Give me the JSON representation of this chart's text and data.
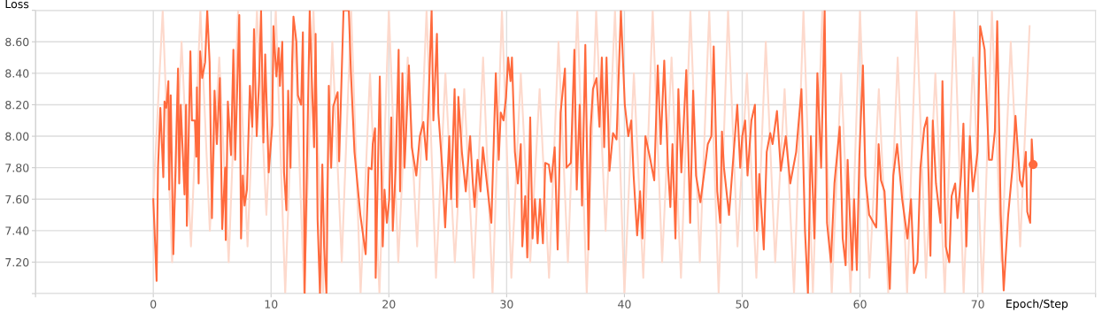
{
  "chart_data": {
    "type": "line",
    "xlabel": "Epoch/Step",
    "ylabel": "Loss",
    "xlim": [
      -10,
      80
    ],
    "ylim": [
      7.0,
      8.8
    ],
    "xticks": [
      {
        "value": -10,
        "label": null
      },
      0,
      10,
      20,
      30,
      40,
      50,
      60,
      70,
      {
        "value": 80,
        "label": null
      }
    ],
    "yticks": [
      {
        "value": 7.0,
        "label": null
      },
      {
        "value": 7.2,
        "label": "7.20"
      },
      {
        "value": 7.4,
        "label": "7.40"
      },
      {
        "value": 7.6,
        "label": "7.60"
      },
      {
        "value": 7.8,
        "label": "7.80"
      },
      {
        "value": 8.0,
        "label": "8.00"
      },
      {
        "value": 8.2,
        "label": "8.20"
      },
      {
        "value": 8.4,
        "label": "8.40"
      },
      {
        "value": 8.6,
        "label": "8.60"
      },
      {
        "value": 8.8,
        "label": null
      }
    ],
    "grid": true,
    "legend": false,
    "line_style": "solid",
    "series": [
      {
        "color": "#fdd9cc",
        "x": [
          0,
          0.8,
          1.6,
          2.4,
          3.2,
          4.0,
          4.8,
          5.6,
          6.4,
          7.2,
          8.0,
          8.8,
          9.6,
          10.4,
          11.2,
          12.0,
          12.8,
          13.6,
          14.4,
          15.2,
          16.0,
          16.8,
          17.6,
          18.4,
          19.2,
          20.0,
          20.8,
          21.6,
          22.4,
          23.2,
          24.0,
          24.8,
          25.6,
          26.4,
          27.2,
          28.0,
          28.8,
          29.6,
          30.4,
          31.2,
          32.0,
          32.8,
          33.6,
          34.4,
          35.2,
          36.0,
          36.8,
          37.6,
          38.4,
          39.2,
          40.0,
          40.8,
          41.6,
          42.4,
          43.2,
          44.0,
          44.8,
          45.6,
          46.4,
          47.2,
          48.0,
          48.8,
          49.6,
          50.4,
          51.2,
          52.0,
          52.8,
          53.6,
          54.4,
          55.2,
          56.0,
          56.8,
          57.6,
          58.4,
          59.2,
          60.0,
          60.8,
          61.6,
          62.4,
          63.2,
          64.0,
          64.8,
          65.6,
          66.4,
          67.2,
          68.0,
          68.8,
          69.6,
          70.4,
          71.2,
          72.0,
          72.8,
          73.6,
          74.4
        ],
        "values": [
          7.6,
          8.8,
          7.2,
          8.6,
          7.3,
          8.8,
          7.4,
          8.5,
          7.2,
          8.8,
          7.3,
          8.8,
          7.5,
          8.8,
          7.0,
          8.7,
          7.0,
          8.8,
          7.0,
          8.6,
          7.2,
          8.8,
          7.0,
          8.4,
          7.0,
          8.8,
          7.2,
          8.5,
          7.3,
          8.8,
          7.1,
          8.4,
          7.2,
          8.3,
          7.1,
          8.5,
          7.0,
          8.8,
          7.1,
          8.4,
          7.2,
          8.3,
          7.1,
          8.6,
          7.2,
          8.8,
          7.0,
          8.8,
          7.4,
          8.8,
          7.0,
          8.4,
          7.1,
          8.8,
          7.2,
          8.5,
          7.1,
          8.8,
          7.2,
          8.8,
          7.0,
          8.8,
          7.3,
          8.4,
          7.1,
          8.6,
          7.2,
          8.3,
          7.0,
          8.8,
          7.0,
          8.8,
          7.0,
          8.4,
          7.0,
          8.8,
          7.1,
          8.3,
          7.0,
          8.5,
          7.0,
          8.8,
          7.1,
          8.4,
          7.0,
          8.8,
          7.0,
          8.5,
          7.0,
          8.8,
          7.2,
          8.6,
          7.3,
          8.7
        ]
      },
      {
        "color": "#ff6a3d",
        "x": [
          0,
          0.28,
          0.4,
          0.6,
          0.85,
          0.95,
          1.1,
          1.28,
          1.35,
          1.48,
          1.7,
          2.1,
          2.2,
          2.33,
          2.65,
          2.78,
          2.85,
          3.15,
          3.28,
          3.53,
          3.65,
          3.7,
          3.85,
          3.98,
          4.15,
          4.4,
          4.58,
          4.78,
          4.98,
          5.2,
          5.4,
          5.65,
          5.85,
          6.1,
          6.15,
          6.33,
          6.6,
          6.8,
          6.95,
          7.3,
          7.45,
          7.6,
          7.75,
          7.95,
          8.2,
          8.4,
          8.55,
          8.78,
          8.98,
          9.15,
          9.35,
          9.5,
          9.8,
          10.1,
          10.2,
          10.45,
          10.65,
          10.75,
          10.95,
          11.1,
          11.3,
          11.45,
          11.65,
          11.78,
          11.9,
          12.15,
          12.28,
          12.55,
          12.7,
          12.85,
          13.28,
          13.45,
          13.65,
          13.78,
          13.95,
          14.15,
          14.35,
          14.5,
          14.7,
          14.9,
          15.1,
          15.28,
          15.65,
          15.78,
          16.15,
          16.6,
          16.78,
          17.08,
          17.58,
          18.03,
          18.28,
          18.53,
          18.63,
          18.83,
          18.88,
          19.23,
          19.48,
          19.63,
          19.83,
          20.03,
          20.2,
          20.33,
          20.58,
          20.83,
          20.95,
          21.15,
          21.33,
          21.7,
          21.95,
          22.33,
          22.63,
          22.93,
          23.2,
          23.38,
          23.63,
          23.78,
          24.08,
          24.2,
          24.53,
          24.78,
          25.13,
          25.28,
          25.58,
          25.78,
          25.9,
          26.2,
          26.53,
          26.9,
          27.13,
          27.28,
          27.53,
          27.78,
          27.98,
          28.25,
          28.7,
          29.08,
          29.33,
          29.5,
          29.73,
          29.95,
          30.13,
          30.33,
          30.45,
          30.7,
          30.95,
          31.2,
          31.33,
          31.58,
          31.75,
          32.0,
          32.2,
          32.4,
          32.63,
          32.83,
          33.08,
          33.28,
          33.58,
          33.78,
          34.08,
          34.33,
          34.58,
          34.95,
          35.08,
          35.45,
          35.75,
          35.95,
          36.2,
          36.4,
          36.68,
          36.95,
          37.13,
          37.33,
          37.63,
          37.88,
          38.08,
          38.28,
          38.48,
          38.73,
          39.03,
          39.33,
          39.7,
          40.03,
          40.33,
          40.58,
          40.78,
          41.08,
          41.33,
          41.53,
          41.78,
          42.15,
          42.53,
          42.83,
          43.08,
          43.38,
          43.7,
          43.9,
          44.08,
          44.33,
          44.58,
          44.83,
          45.25,
          45.58,
          45.83,
          46.08,
          46.45,
          46.83,
          47.08,
          47.38,
          47.58,
          47.88,
          48.13,
          48.28,
          48.45,
          48.88,
          49.58,
          49.83,
          50,
          50.25,
          50.45,
          50.78,
          51.08,
          51.25,
          51.45,
          51.83,
          52.08,
          52.38,
          52.58,
          52.95,
          53.28,
          53.7,
          54.08,
          54.58,
          55.03,
          55.33,
          55.58,
          55.83,
          56.13,
          56.38,
          56.7,
          57.0,
          57.2,
          57.53,
          57.83,
          58.28,
          58.53,
          58.78,
          58.95,
          59.08,
          59.33,
          59.5,
          59.73,
          59.95,
          60.25,
          60.45,
          60.78,
          61.38,
          61.58,
          61.78,
          62.08,
          62.53,
          62.83,
          63.15,
          63.58,
          64.03,
          64.33,
          64.58,
          64.88,
          65.13,
          65.45,
          65.7,
          65.98,
          66.18,
          66.45,
          66.83,
          67.0,
          67.28,
          67.58,
          67.78,
          68.08,
          68.28,
          68.58,
          68.78,
          69.03,
          69.33,
          69.58,
          69.98,
          70.2,
          70.58,
          70.95,
          71.2,
          71.45,
          71.65,
          71.95,
          72.2,
          72.58,
          72.95,
          73.2,
          73.58,
          73.78,
          74.08,
          74.2,
          74.45,
          74.58,
          74.7
        ],
        "values": [
          7.6,
          7.08,
          7.8,
          8.18,
          7.74,
          8.22,
          8.18,
          8.35,
          7.66,
          8.26,
          7.25,
          8.43,
          7.7,
          8.2,
          7.63,
          8.2,
          7.43,
          8.54,
          8.1,
          8.1,
          7.87,
          8.31,
          7.7,
          8.54,
          8.37,
          8.47,
          8.8,
          8.47,
          7.48,
          8.29,
          7.95,
          8.37,
          7.41,
          7.8,
          7.34,
          8.22,
          7.88,
          8.55,
          7.85,
          8.77,
          7.35,
          7.75,
          7.56,
          7.66,
          8.32,
          8.06,
          8.68,
          8.0,
          8.35,
          8.8,
          7.96,
          8.52,
          7.77,
          8.07,
          8.7,
          8.38,
          8.56,
          8.32,
          8.6,
          7.77,
          7.53,
          8.29,
          7.8,
          8.45,
          8.76,
          8.6,
          8.26,
          8.2,
          8.66,
          7.0,
          8.8,
          8.38,
          7.93,
          8.65,
          7.47,
          7.0,
          7.82,
          7.3,
          7.0,
          8.32,
          7.8,
          8.19,
          8.28,
          7.84,
          8.8,
          8.8,
          8.4,
          7.9,
          7.5,
          7.25,
          7.8,
          7.79,
          7.95,
          8.05,
          7.1,
          8.38,
          7.3,
          7.66,
          7.45,
          7.6,
          8.12,
          7.4,
          7.8,
          8.55,
          7.65,
          8.4,
          7.8,
          8.45,
          7.93,
          7.75,
          8.0,
          8.09,
          7.85,
          8.25,
          8.8,
          8.1,
          8.65,
          8.15,
          7.8,
          7.42,
          8.0,
          7.6,
          8.3,
          7.55,
          8.25,
          7.9,
          7.65,
          8.0,
          7.7,
          7.55,
          7.85,
          7.65,
          7.93,
          7.75,
          7.45,
          8.4,
          7.85,
          8.15,
          8.1,
          8.25,
          8.5,
          8.35,
          8.5,
          7.9,
          7.7,
          7.95,
          7.3,
          7.62,
          7.23,
          8.12,
          7.35,
          7.6,
          7.32,
          7.6,
          7.32,
          7.83,
          7.82,
          7.71,
          7.93,
          7.28,
          8.15,
          8.43,
          7.8,
          7.83,
          8.55,
          7.66,
          8.2,
          7.56,
          8.58,
          7.28,
          8.05,
          8.3,
          8.37,
          8.06,
          8.5,
          7.93,
          8.5,
          7.78,
          8.02,
          7.98,
          8.8,
          8.2,
          8.0,
          8.1,
          7.75,
          7.37,
          7.65,
          7.35,
          8.0,
          7.87,
          7.72,
          8.45,
          7.95,
          8.48,
          7.8,
          7.55,
          7.95,
          7.35,
          8.3,
          7.77,
          8.42,
          7.45,
          8.29,
          7.75,
          7.58,
          7.8,
          7.95,
          8.0,
          8.57,
          7.65,
          7.45,
          8.03,
          7.8,
          7.5,
          8.2,
          7.8,
          8.0,
          8.1,
          7.75,
          8.1,
          8.2,
          7.4,
          7.76,
          7.28,
          7.9,
          8.02,
          7.95,
          8.16,
          7.78,
          8.0,
          7.7,
          7.9,
          8.3,
          7.4,
          7.0,
          8.0,
          7.35,
          8.4,
          7.8,
          8.8,
          7.45,
          7.2,
          7.7,
          8.06,
          7.35,
          7.18,
          7.85,
          7.6,
          7.15,
          7.6,
          7.15,
          7.88,
          8.45,
          7.75,
          7.5,
          7.42,
          7.95,
          7.72,
          7.65,
          7.03,
          7.75,
          7.95,
          7.6,
          7.35,
          7.6,
          7.13,
          7.2,
          7.8,
          8.05,
          8.12,
          7.24,
          8.1,
          7.7,
          7.45,
          8.35,
          7.3,
          7.2,
          7.62,
          7.7,
          7.48,
          7.75,
          8.08,
          7.3,
          8.0,
          7.65,
          7.9,
          8.7,
          8.55,
          7.85,
          7.85,
          8.03,
          8.73,
          7.5,
          7.02,
          7.5,
          7.8,
          8.13,
          7.72,
          7.68,
          7.9,
          7.52,
          7.45,
          7.98,
          7.82
        ]
      },
      {
        "type": "scatter",
        "color": "#ff6a3d",
        "marker": "circle",
        "x": [
          74.7
        ],
        "values": [
          7.82
        ]
      }
    ]
  }
}
